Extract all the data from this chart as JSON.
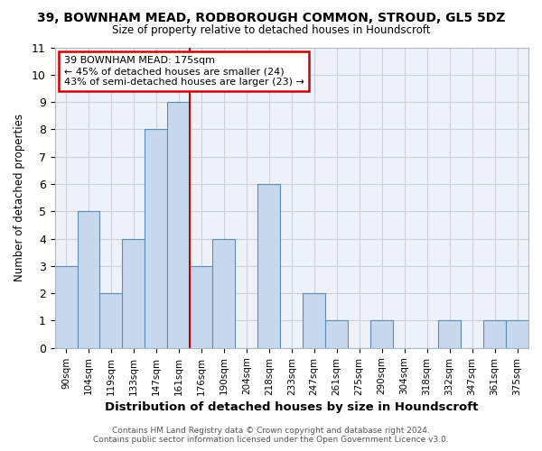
{
  "title1": "39, BOWNHAM MEAD, RODBOROUGH COMMON, STROUD, GL5 5DZ",
  "title2": "Size of property relative to detached houses in Houndscroft",
  "xlabel": "Distribution of detached houses by size in Houndscroft",
  "ylabel": "Number of detached properties",
  "footer1": "Contains HM Land Registry data © Crown copyright and database right 2024.",
  "footer2": "Contains public sector information licensed under the Open Government Licence v3.0.",
  "categories": [
    "90sqm",
    "104sqm",
    "119sqm",
    "133sqm",
    "147sqm",
    "161sqm",
    "176sqm",
    "190sqm",
    "204sqm",
    "218sqm",
    "233sqm",
    "247sqm",
    "261sqm",
    "275sqm",
    "290sqm",
    "304sqm",
    "318sqm",
    "332sqm",
    "347sqm",
    "361sqm",
    "375sqm"
  ],
  "values": [
    3,
    5,
    2,
    4,
    8,
    9,
    3,
    4,
    0,
    6,
    0,
    2,
    1,
    0,
    1,
    0,
    0,
    1,
    0,
    1,
    1
  ],
  "bar_color": "#c8d8ec",
  "bar_edge_color": "#5b8db8",
  "grid_color": "#c8d0dc",
  "background_color": "#ffffff",
  "plot_bg_color": "#eef2f8",
  "annotation_box_color": "#ffffff",
  "annotation_box_edge": "#cc0000",
  "ref_line_color": "#cc0000",
  "ref_line_x": 5.5,
  "annotation_title": "39 BOWNHAM MEAD: 175sqm",
  "annotation_line1": "← 45% of detached houses are smaller (24)",
  "annotation_line2": "43% of semi-detached houses are larger (23) →",
  "ylim": [
    0,
    11
  ],
  "yticks": [
    0,
    1,
    2,
    3,
    4,
    5,
    6,
    7,
    8,
    9,
    10,
    11
  ]
}
